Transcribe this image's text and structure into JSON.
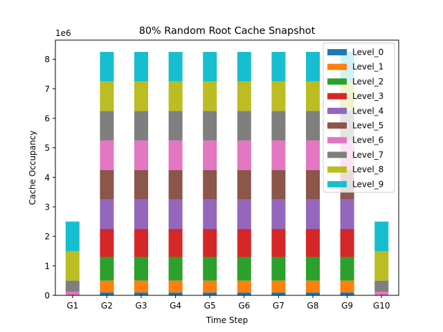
{
  "chart_data": {
    "type": "bar",
    "stacked": true,
    "title": "80% Random Root Cache Snapshot",
    "xlabel": "Time Step",
    "ylabel": "Cache Occupancy",
    "y_offset_text": "1e6",
    "ylim": [
      0,
      8.65
    ],
    "yticks": [
      "0",
      "1",
      "2",
      "3",
      "4",
      "5",
      "6",
      "7",
      "8"
    ],
    "grid": false,
    "legend": "upper right",
    "categories": [
      "G1",
      "G2",
      "G3",
      "G4",
      "G5",
      "G6",
      "G7",
      "G8",
      "G9",
      "G10"
    ],
    "series": [
      {
        "name": "Level_0",
        "color": "#1f77b4",
        "values": [
          0.0,
          0.1,
          0.1,
          0.1,
          0.1,
          0.1,
          0.1,
          0.1,
          0.1,
          0.0
        ]
      },
      {
        "name": "Level_1",
        "color": "#ff7f0e",
        "values": [
          0.0,
          0.4,
          0.4,
          0.4,
          0.4,
          0.4,
          0.4,
          0.4,
          0.4,
          0.0
        ]
      },
      {
        "name": "Level_2",
        "color": "#2ca02c",
        "values": [
          0.0,
          0.8,
          0.8,
          0.8,
          0.8,
          0.8,
          0.8,
          0.8,
          0.8,
          0.0
        ]
      },
      {
        "name": "Level_3",
        "color": "#d62728",
        "values": [
          0.0,
          0.95,
          0.95,
          0.95,
          0.95,
          0.95,
          0.95,
          0.95,
          0.95,
          0.0
        ]
      },
      {
        "name": "Level_4",
        "color": "#9467bd",
        "values": [
          0.0,
          1.0,
          1.0,
          1.0,
          1.0,
          1.0,
          1.0,
          1.0,
          1.0,
          0.0
        ]
      },
      {
        "name": "Level_5",
        "color": "#8c564b",
        "values": [
          0.0,
          1.0,
          1.0,
          1.0,
          1.0,
          1.0,
          1.0,
          1.0,
          1.0,
          0.0
        ]
      },
      {
        "name": "Level_6",
        "color": "#e377c2",
        "values": [
          0.12,
          1.0,
          1.0,
          1.0,
          1.0,
          1.0,
          1.0,
          1.0,
          1.0,
          0.12
        ]
      },
      {
        "name": "Level_7",
        "color": "#7f7f7f",
        "values": [
          0.38,
          1.0,
          1.0,
          1.0,
          1.0,
          1.0,
          1.0,
          1.0,
          1.0,
          0.38
        ]
      },
      {
        "name": "Level_8",
        "color": "#bcbd22",
        "values": [
          1.0,
          1.0,
          1.0,
          1.0,
          1.0,
          1.0,
          1.0,
          1.0,
          1.0,
          1.0
        ]
      },
      {
        "name": "Level_9",
        "color": "#17becf",
        "values": [
          1.0,
          1.0,
          1.0,
          1.0,
          1.0,
          1.0,
          1.0,
          1.0,
          1.0,
          1.0
        ]
      }
    ]
  }
}
